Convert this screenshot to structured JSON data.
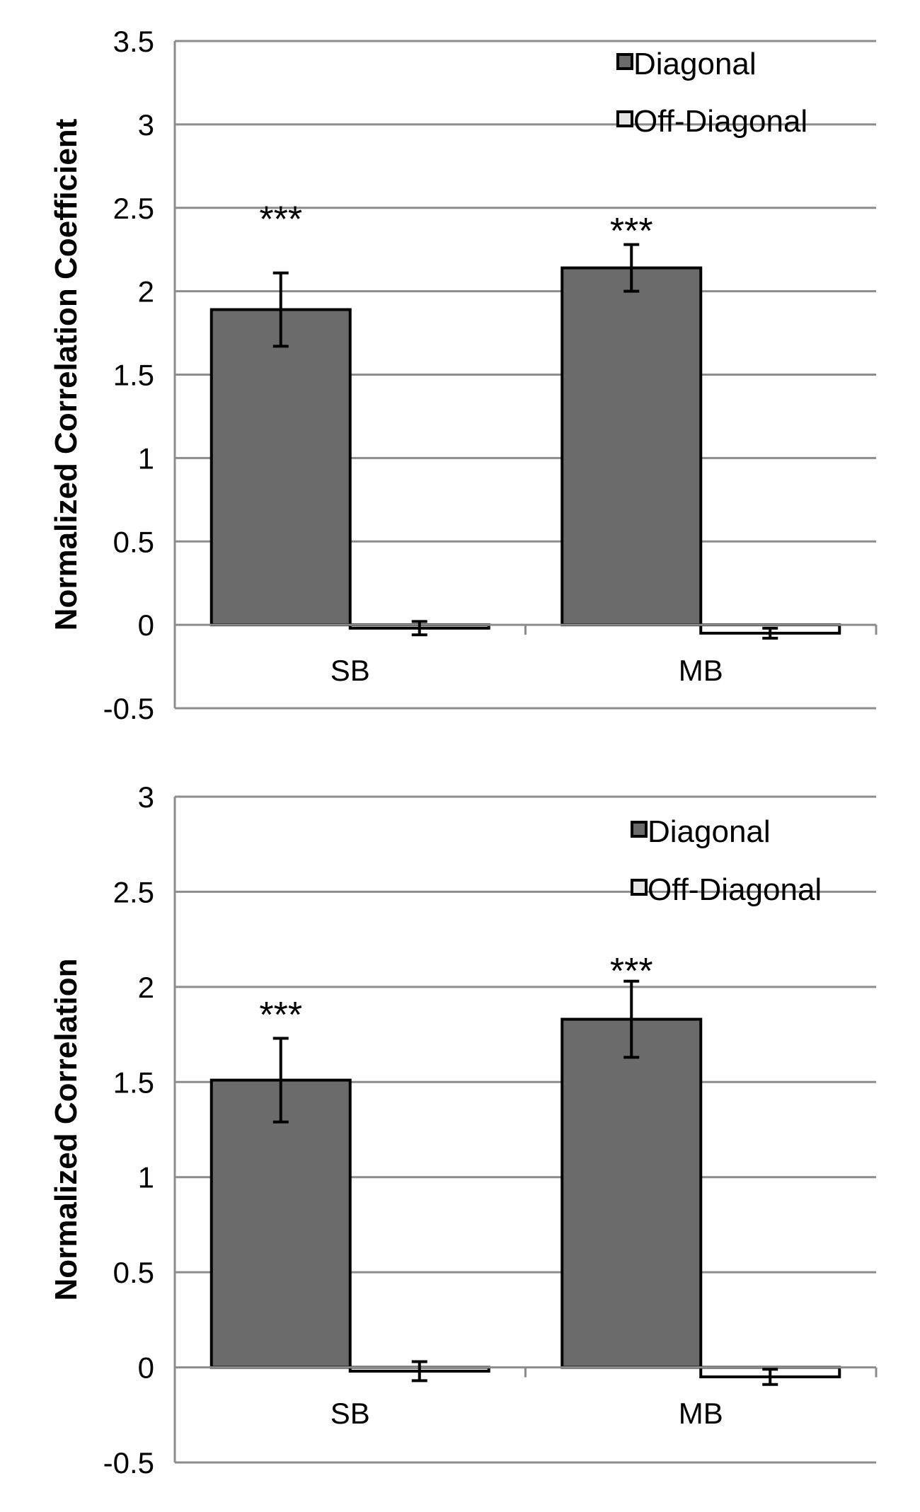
{
  "chart_data": [
    {
      "type": "bar",
      "title": "",
      "xlabel": "",
      "ylabel": "Normalized Correlation Coefficient",
      "ylim": [
        -0.5,
        3.5
      ],
      "yticks": [
        -0.5,
        0,
        0.5,
        1,
        1.5,
        2,
        2.5,
        3,
        3.5
      ],
      "ytick_labels": [
        "-0.5",
        "0",
        "0.5",
        "1",
        "1.5",
        "2",
        "2.5",
        "3",
        "3.5"
      ],
      "grid": true,
      "legend_position": "top-right",
      "categories": [
        "SB",
        "MB"
      ],
      "series": [
        {
          "name": "Diagonal",
          "color": "#6b6b6b",
          "values": [
            1.89,
            2.14
          ],
          "errors": [
            0.22,
            0.14
          ]
        },
        {
          "name": "Off-Diagonal",
          "color": "#ffffff",
          "values": [
            -0.02,
            -0.05
          ],
          "errors": [
            0.04,
            0.03
          ]
        }
      ],
      "annotations": [
        {
          "text": "***",
          "category": 0,
          "y": 2.45
        },
        {
          "text": "***",
          "category": 1,
          "y": 2.38
        }
      ]
    },
    {
      "type": "bar",
      "title": "",
      "xlabel": "",
      "ylabel": "Normalized Correlation",
      "ylim": [
        -0.5,
        3
      ],
      "yticks": [
        -0.5,
        0,
        0.5,
        1,
        1.5,
        2,
        2.5,
        3
      ],
      "ytick_labels": [
        "-0.5",
        "0",
        "0.5",
        "1",
        "1.5",
        "2",
        "2.5",
        "3"
      ],
      "grid": true,
      "legend_position": "top-right",
      "categories": [
        "SB",
        "MB"
      ],
      "series": [
        {
          "name": "Diagonal",
          "color": "#6b6b6b",
          "values": [
            1.51,
            1.83
          ],
          "errors": [
            0.22,
            0.2
          ]
        },
        {
          "name": "Off-Diagonal",
          "color": "#ffffff",
          "values": [
            -0.02,
            -0.05
          ],
          "errors": [
            0.05,
            0.04
          ]
        }
      ],
      "annotations": [
        {
          "text": "***",
          "category": 0,
          "y": 1.87
        },
        {
          "text": "***",
          "category": 1,
          "y": 2.1
        }
      ]
    }
  ]
}
